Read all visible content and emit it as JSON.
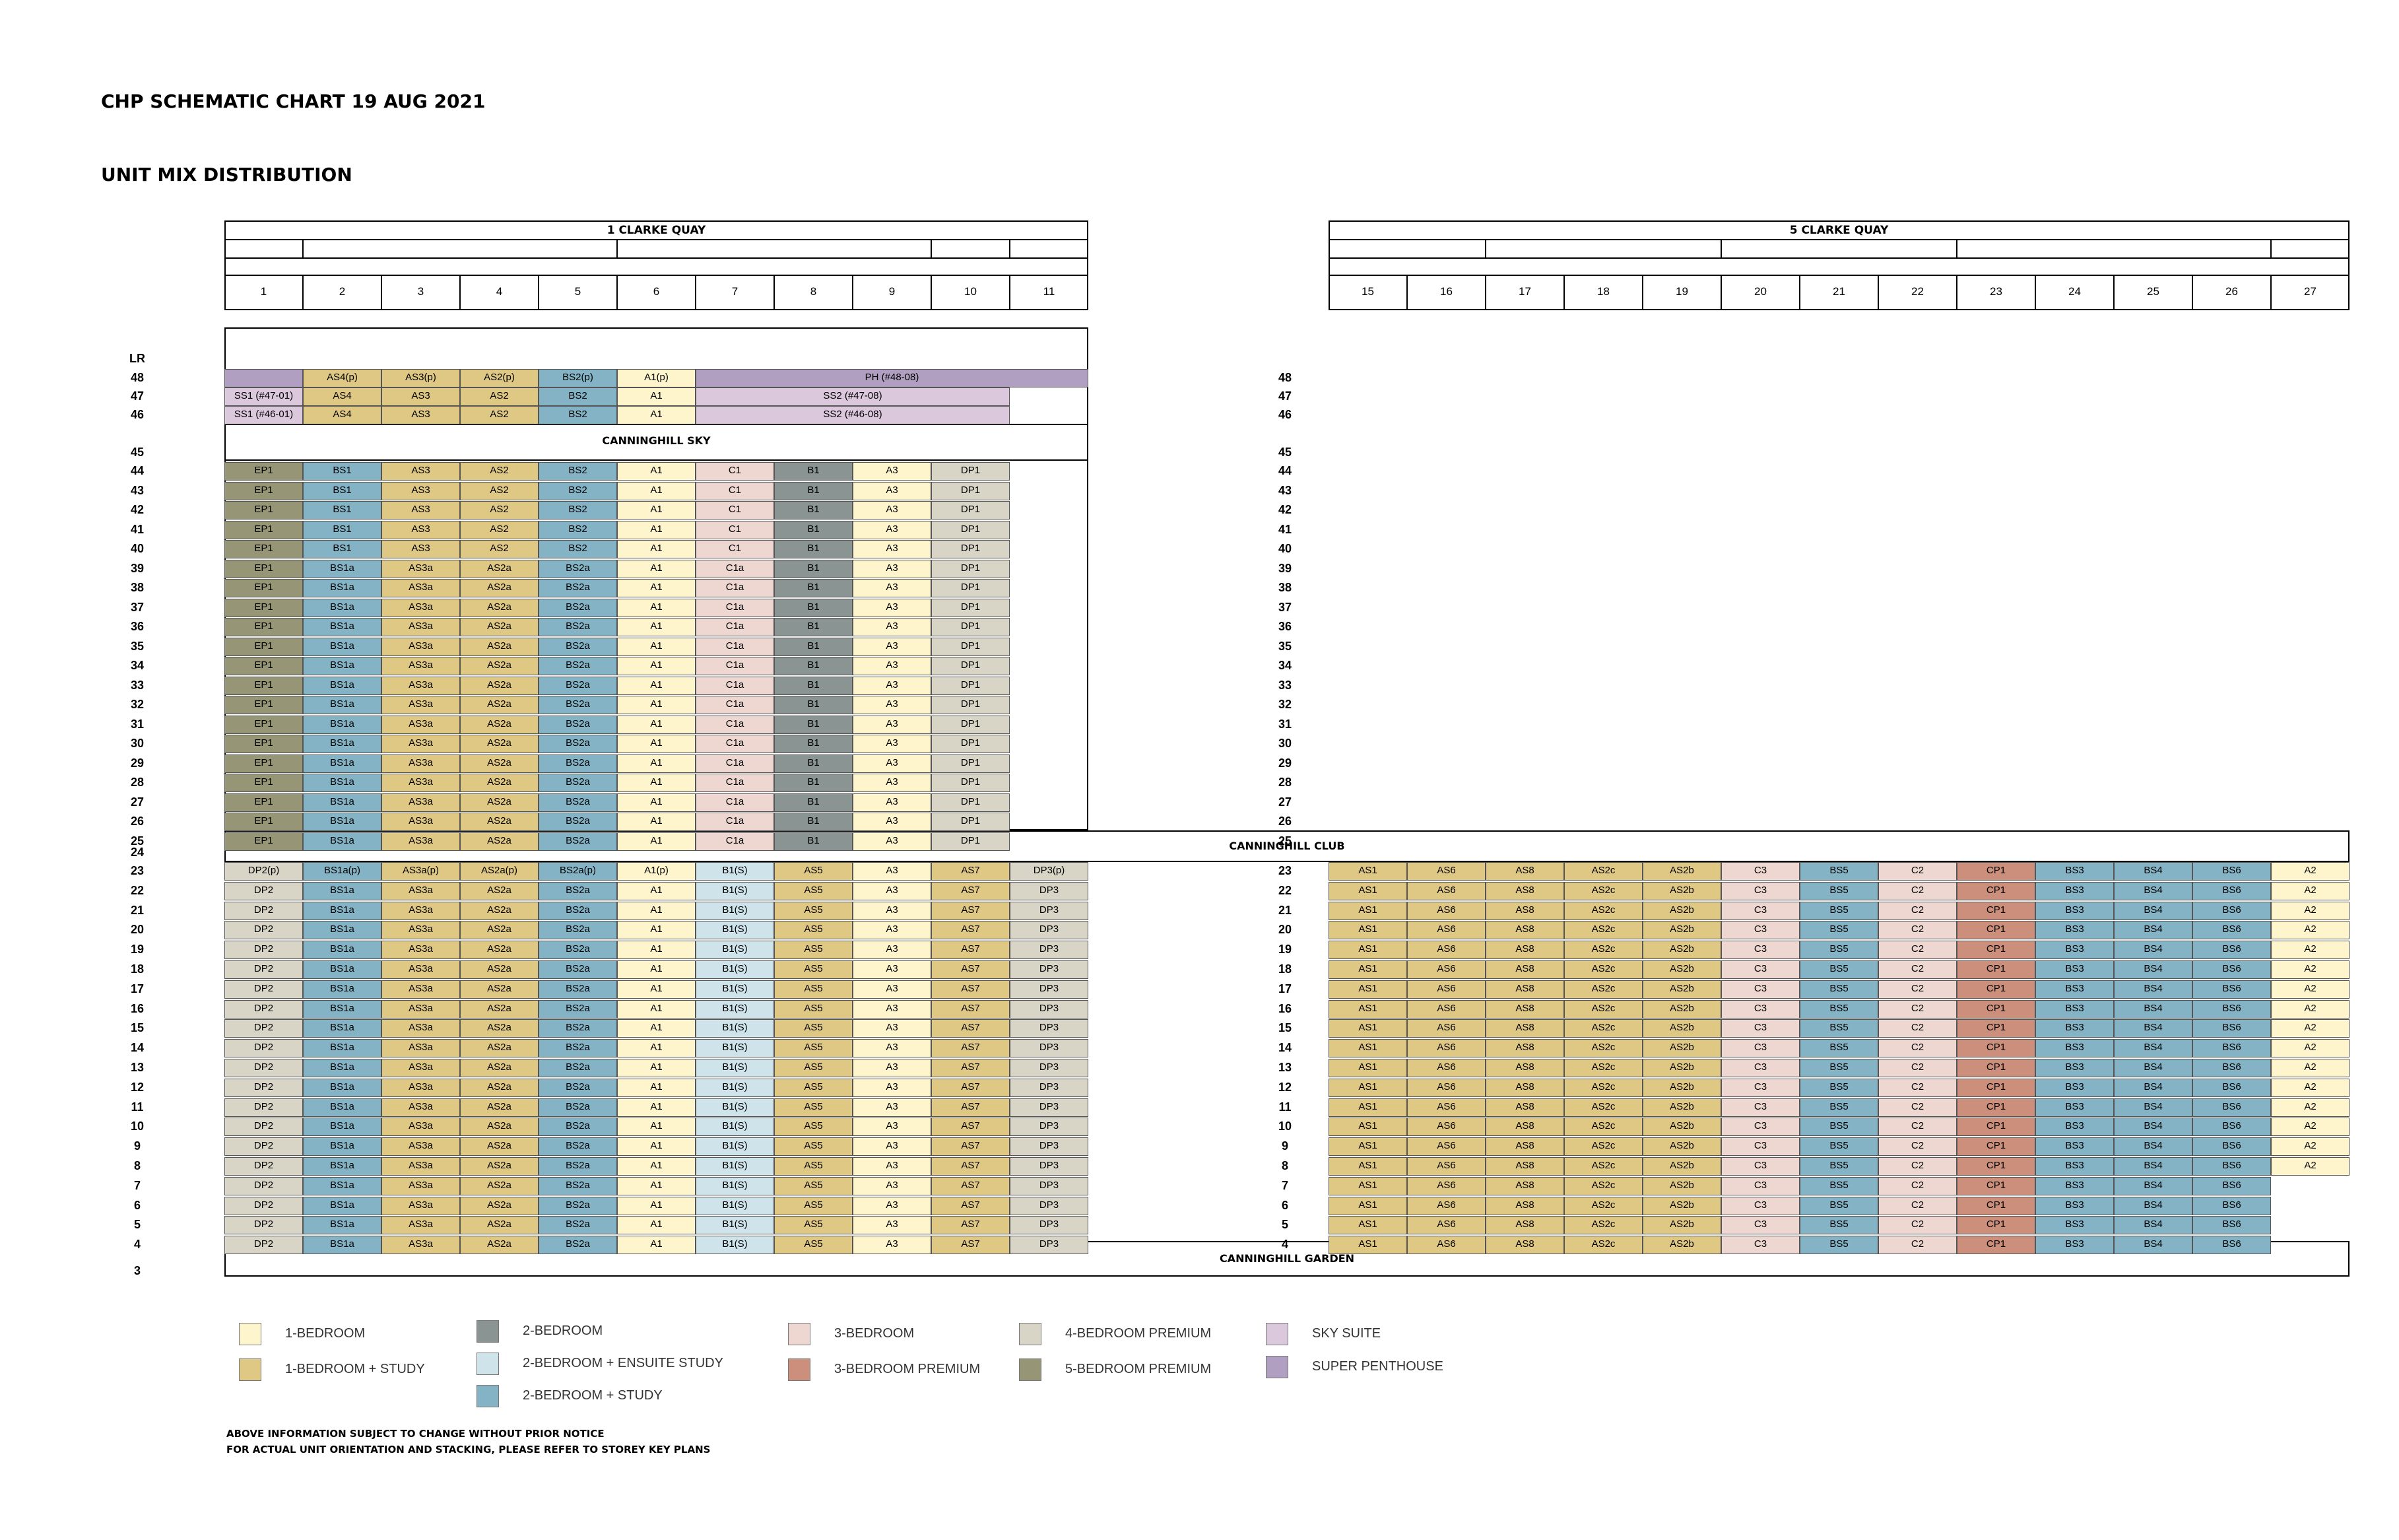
{
  "title": "CHP SCHEMATIC CHART 19 AUG 2021",
  "subtitle": "UNIT MIX DISTRIBUTION",
  "colors": {
    "1BR": "#FFF5CC",
    "1BRS": "#DFC784",
    "2BR": "#899493",
    "2BRE": "#CFE3EA",
    "2BRS": "#84B3C5",
    "3BR": "#EDD7D0",
    "3BRP": "#CC8F7B",
    "4BRP": "#D8D5C6",
    "5BRP": "#969676",
    "SS": "#DCC8DC",
    "SP": "#B09FC0"
  },
  "buildings": [
    {
      "name": "1 CLARKE QUAY",
      "columns": [
        "1",
        "2",
        "3",
        "4",
        "5",
        "6",
        "7",
        "8",
        "9",
        "10",
        "11"
      ]
    },
    {
      "name": "5 CLARKE QUAY",
      "columns": [
        "15",
        "16",
        "17",
        "18",
        "19",
        "20",
        "21",
        "22",
        "23",
        "24",
        "25",
        "26",
        "27"
      ]
    }
  ],
  "floor_labels": {
    "left": [
      "LR",
      "48",
      "47",
      "46",
      "45",
      "44",
      "43",
      "42",
      "41",
      "40",
      "39",
      "38",
      "37",
      "36",
      "35",
      "34",
      "33",
      "32",
      "31",
      "30",
      "29",
      "28",
      "27",
      "26",
      "25",
      "24",
      "23",
      "22",
      "21",
      "20",
      "19",
      "18",
      "17",
      "16",
      "15",
      "14",
      "13",
      "12",
      "11",
      "10",
      "9",
      "8",
      "7",
      "6",
      "5",
      "4",
      "3"
    ],
    "right": [
      "48",
      "47",
      "46",
      "45",
      "44",
      "43",
      "42",
      "41",
      "40",
      "39",
      "38",
      "37",
      "36",
      "35",
      "34",
      "33",
      "32",
      "31",
      "30",
      "29",
      "28",
      "27",
      "26",
      "25",
      "23",
      "22",
      "21",
      "20",
      "19",
      "18",
      "17",
      "16",
      "15",
      "14",
      "13",
      "12",
      "11",
      "10",
      "9",
      "8",
      "7",
      "6",
      "5",
      "4"
    ]
  },
  "sections": {
    "sky": "CANNINGHILL SKY",
    "club": "CANNINGHILL CLUB",
    "garden": "CANNINGHILL GARDEN"
  },
  "top_rows": [
    {
      "floor": "48",
      "cells": [
        {
          "label": "",
          "type": "SP",
          "span": 1
        },
        {
          "label": "AS4(p)",
          "type": "1BRS",
          "span": 1
        },
        {
          "label": "AS3(p)",
          "type": "1BRS",
          "span": 1
        },
        {
          "label": "AS2(p)",
          "type": "1BRS",
          "span": 1
        },
        {
          "label": "BS2(p)",
          "type": "2BRS",
          "span": 1
        },
        {
          "label": "A1(p)",
          "type": "1BR",
          "span": 1
        },
        {
          "label": "PH (#48-08)",
          "type": "SP",
          "span": 5
        }
      ]
    },
    {
      "floor": "47",
      "cells": [
        {
          "label": "SS1 (#47-01)",
          "type": "SS",
          "span": 1
        },
        {
          "label": "AS4",
          "type": "1BRS",
          "span": 1
        },
        {
          "label": "AS3",
          "type": "1BRS",
          "span": 1
        },
        {
          "label": "AS2",
          "type": "1BRS",
          "span": 1
        },
        {
          "label": "BS2",
          "type": "2BRS",
          "span": 1
        },
        {
          "label": "A1",
          "type": "1BR",
          "span": 1
        },
        {
          "label": "SS2 (#47-08)",
          "type": "SS",
          "span": 4
        }
      ]
    },
    {
      "floor": "46",
      "cells": [
        {
          "label": "SS1 (#46-01)",
          "type": "SS",
          "span": 1
        },
        {
          "label": "AS4",
          "type": "1BRS",
          "span": 1
        },
        {
          "label": "AS3",
          "type": "1BRS",
          "span": 1
        },
        {
          "label": "AS2",
          "type": "1BRS",
          "span": 1
        },
        {
          "label": "BS2",
          "type": "2BRS",
          "span": 1
        },
        {
          "label": "A1",
          "type": "1BR",
          "span": 1
        },
        {
          "label": "SS2 (#46-08)",
          "type": "SS",
          "span": 4
        }
      ]
    }
  ],
  "upper_rows": [
    {
      "floor": "44",
      "units": [
        "EP1",
        "BS1",
        "AS3",
        "AS2",
        "BS2",
        "A1",
        "C1",
        "B1",
        "A3",
        "DP1"
      ]
    },
    {
      "floor": "43",
      "units": [
        "EP1",
        "BS1",
        "AS3",
        "AS2",
        "BS2",
        "A1",
        "C1",
        "B1",
        "A3",
        "DP1"
      ]
    },
    {
      "floor": "42",
      "units": [
        "EP1",
        "BS1",
        "AS3",
        "AS2",
        "BS2",
        "A1",
        "C1",
        "B1",
        "A3",
        "DP1"
      ]
    },
    {
      "floor": "41",
      "units": [
        "EP1",
        "BS1",
        "AS3",
        "AS2",
        "BS2",
        "A1",
        "C1",
        "B1",
        "A3",
        "DP1"
      ]
    },
    {
      "floor": "40",
      "units": [
        "EP1",
        "BS1",
        "AS3",
        "AS2",
        "BS2",
        "A1",
        "C1",
        "B1",
        "A3",
        "DP1"
      ]
    },
    {
      "floor": "39",
      "units": [
        "EP1",
        "BS1a",
        "AS3a",
        "AS2a",
        "BS2a",
        "A1",
        "C1a",
        "B1",
        "A3",
        "DP1"
      ]
    },
    {
      "floor": "38",
      "units": [
        "EP1",
        "BS1a",
        "AS3a",
        "AS2a",
        "BS2a",
        "A1",
        "C1a",
        "B1",
        "A3",
        "DP1"
      ]
    },
    {
      "floor": "37",
      "units": [
        "EP1",
        "BS1a",
        "AS3a",
        "AS2a",
        "BS2a",
        "A1",
        "C1a",
        "B1",
        "A3",
        "DP1"
      ]
    },
    {
      "floor": "36",
      "units": [
        "EP1",
        "BS1a",
        "AS3a",
        "AS2a",
        "BS2a",
        "A1",
        "C1a",
        "B1",
        "A3",
        "DP1"
      ]
    },
    {
      "floor": "35",
      "units": [
        "EP1",
        "BS1a",
        "AS3a",
        "AS2a",
        "BS2a",
        "A1",
        "C1a",
        "B1",
        "A3",
        "DP1"
      ]
    },
    {
      "floor": "34",
      "units": [
        "EP1",
        "BS1a",
        "AS3a",
        "AS2a",
        "BS2a",
        "A1",
        "C1a",
        "B1",
        "A3",
        "DP1"
      ]
    },
    {
      "floor": "33",
      "units": [
        "EP1",
        "BS1a",
        "AS3a",
        "AS2a",
        "BS2a",
        "A1",
        "C1a",
        "B1",
        "A3",
        "DP1"
      ]
    },
    {
      "floor": "32",
      "units": [
        "EP1",
        "BS1a",
        "AS3a",
        "AS2a",
        "BS2a",
        "A1",
        "C1a",
        "B1",
        "A3",
        "DP1"
      ]
    },
    {
      "floor": "31",
      "units": [
        "EP1",
        "BS1a",
        "AS3a",
        "AS2a",
        "BS2a",
        "A1",
        "C1a",
        "B1",
        "A3",
        "DP1"
      ]
    },
    {
      "floor": "30",
      "units": [
        "EP1",
        "BS1a",
        "AS3a",
        "AS2a",
        "BS2a",
        "A1",
        "C1a",
        "B1",
        "A3",
        "DP1"
      ]
    },
    {
      "floor": "29",
      "units": [
        "EP1",
        "BS1a",
        "AS3a",
        "AS2a",
        "BS2a",
        "A1",
        "C1a",
        "B1",
        "A3",
        "DP1"
      ]
    },
    {
      "floor": "28",
      "units": [
        "EP1",
        "BS1a",
        "AS3a",
        "AS2a",
        "BS2a",
        "A1",
        "C1a",
        "B1",
        "A3",
        "DP1"
      ]
    },
    {
      "floor": "27",
      "units": [
        "EP1",
        "BS1a",
        "AS3a",
        "AS2a",
        "BS2a",
        "A1",
        "C1a",
        "B1",
        "A3",
        "DP1"
      ]
    },
    {
      "floor": "26",
      "units": [
        "EP1",
        "BS1a",
        "AS3a",
        "AS2a",
        "BS2a",
        "A1",
        "C1a",
        "B1",
        "A3",
        "DP1"
      ]
    },
    {
      "floor": "25",
      "units": [
        "EP1",
        "BS1a",
        "AS3a",
        "AS2a",
        "BS2a",
        "A1",
        "C1a",
        "B1",
        "A3",
        "DP1"
      ]
    }
  ],
  "upper_types": [
    "5BRP",
    "2BRS",
    "1BRS",
    "1BRS",
    "2BRS",
    "1BR",
    "3BR",
    "2BR",
    "1BR",
    "4BRP"
  ],
  "lower_rows_1cq": [
    {
      "floor": "23",
      "units": [
        "DP2(p)",
        "BS1a(p)",
        "AS3a(p)",
        "AS2a(p)",
        "BS2a(p)",
        "A1(p)",
        "B1(S)",
        "AS5",
        "A3",
        "AS7",
        "DP3(p)"
      ]
    },
    {
      "floor": "22",
      "units": [
        "DP2",
        "BS1a",
        "AS3a",
        "AS2a",
        "BS2a",
        "A1",
        "B1(S)",
        "AS5",
        "A3",
        "AS7",
        "DP3"
      ]
    },
    {
      "floor": "21",
      "units": [
        "DP2",
        "BS1a",
        "AS3a",
        "AS2a",
        "BS2a",
        "A1",
        "B1(S)",
        "AS5",
        "A3",
        "AS7",
        "DP3"
      ]
    },
    {
      "floor": "20",
      "units": [
        "DP2",
        "BS1a",
        "AS3a",
        "AS2a",
        "BS2a",
        "A1",
        "B1(S)",
        "AS5",
        "A3",
        "AS7",
        "DP3"
      ]
    },
    {
      "floor": "19",
      "units": [
        "DP2",
        "BS1a",
        "AS3a",
        "AS2a",
        "BS2a",
        "A1",
        "B1(S)",
        "AS5",
        "A3",
        "AS7",
        "DP3"
      ]
    },
    {
      "floor": "18",
      "units": [
        "DP2",
        "BS1a",
        "AS3a",
        "AS2a",
        "BS2a",
        "A1",
        "B1(S)",
        "AS5",
        "A3",
        "AS7",
        "DP3"
      ]
    },
    {
      "floor": "17",
      "units": [
        "DP2",
        "BS1a",
        "AS3a",
        "AS2a",
        "BS2a",
        "A1",
        "B1(S)",
        "AS5",
        "A3",
        "AS7",
        "DP3"
      ]
    },
    {
      "floor": "16",
      "units": [
        "DP2",
        "BS1a",
        "AS3a",
        "AS2a",
        "BS2a",
        "A1",
        "B1(S)",
        "AS5",
        "A3",
        "AS7",
        "DP3"
      ]
    },
    {
      "floor": "15",
      "units": [
        "DP2",
        "BS1a",
        "AS3a",
        "AS2a",
        "BS2a",
        "A1",
        "B1(S)",
        "AS5",
        "A3",
        "AS7",
        "DP3"
      ]
    },
    {
      "floor": "14",
      "units": [
        "DP2",
        "BS1a",
        "AS3a",
        "AS2a",
        "BS2a",
        "A1",
        "B1(S)",
        "AS5",
        "A3",
        "AS7",
        "DP3"
      ]
    },
    {
      "floor": "13",
      "units": [
        "DP2",
        "BS1a",
        "AS3a",
        "AS2a",
        "BS2a",
        "A1",
        "B1(S)",
        "AS5",
        "A3",
        "AS7",
        "DP3"
      ]
    },
    {
      "floor": "12",
      "units": [
        "DP2",
        "BS1a",
        "AS3a",
        "AS2a",
        "BS2a",
        "A1",
        "B1(S)",
        "AS5",
        "A3",
        "AS7",
        "DP3"
      ]
    },
    {
      "floor": "11",
      "units": [
        "DP2",
        "BS1a",
        "AS3a",
        "AS2a",
        "BS2a",
        "A1",
        "B1(S)",
        "AS5",
        "A3",
        "AS7",
        "DP3"
      ]
    },
    {
      "floor": "10",
      "units": [
        "DP2",
        "BS1a",
        "AS3a",
        "AS2a",
        "BS2a",
        "A1",
        "B1(S)",
        "AS5",
        "A3",
        "AS7",
        "DP3"
      ]
    },
    {
      "floor": "9",
      "units": [
        "DP2",
        "BS1a",
        "AS3a",
        "AS2a",
        "BS2a",
        "A1",
        "B1(S)",
        "AS5",
        "A3",
        "AS7",
        "DP3"
      ]
    },
    {
      "floor": "8",
      "units": [
        "DP2",
        "BS1a",
        "AS3a",
        "AS2a",
        "BS2a",
        "A1",
        "B1(S)",
        "AS5",
        "A3",
        "AS7",
        "DP3"
      ]
    },
    {
      "floor": "7",
      "units": [
        "DP2",
        "BS1a",
        "AS3a",
        "AS2a",
        "BS2a",
        "A1",
        "B1(S)",
        "AS5",
        "A3",
        "AS7",
        "DP3"
      ]
    },
    {
      "floor": "6",
      "units": [
        "DP2",
        "BS1a",
        "AS3a",
        "AS2a",
        "BS2a",
        "A1",
        "B1(S)",
        "AS5",
        "A3",
        "AS7",
        "DP3"
      ]
    },
    {
      "floor": "5",
      "units": [
        "DP2",
        "BS1a",
        "AS3a",
        "AS2a",
        "BS2a",
        "A1",
        "B1(S)",
        "AS5",
        "A3",
        "AS7",
        "DP3"
      ]
    },
    {
      "floor": "4",
      "units": [
        "DP2",
        "BS1a",
        "AS3a",
        "AS2a",
        "BS2a",
        "A1",
        "B1(S)",
        "AS5",
        "A3",
        "AS7",
        "DP3"
      ]
    }
  ],
  "lower_types_1cq": [
    "4BRP",
    "2BRS",
    "1BRS",
    "1BRS",
    "2BRS",
    "1BR",
    "2BRE",
    "1BRS",
    "1BR",
    "1BRS",
    "4BRP"
  ],
  "lower_rows_5cq": [
    {
      "floor": "23",
      "units": [
        "AS1",
        "AS6",
        "AS8",
        "AS2c",
        "AS2b",
        "C3",
        "BS5",
        "C2",
        "CP1",
        "BS3",
        "BS4",
        "BS6",
        "A2"
      ]
    },
    {
      "floor": "22",
      "units": [
        "AS1",
        "AS6",
        "AS8",
        "AS2c",
        "AS2b",
        "C3",
        "BS5",
        "C2",
        "CP1",
        "BS3",
        "BS4",
        "BS6",
        "A2"
      ]
    },
    {
      "floor": "21",
      "units": [
        "AS1",
        "AS6",
        "AS8",
        "AS2c",
        "AS2b",
        "C3",
        "BS5",
        "C2",
        "CP1",
        "BS3",
        "BS4",
        "BS6",
        "A2"
      ]
    },
    {
      "floor": "20",
      "units": [
        "AS1",
        "AS6",
        "AS8",
        "AS2c",
        "AS2b",
        "C3",
        "BS5",
        "C2",
        "CP1",
        "BS3",
        "BS4",
        "BS6",
        "A2"
      ]
    },
    {
      "floor": "19",
      "units": [
        "AS1",
        "AS6",
        "AS8",
        "AS2c",
        "AS2b",
        "C3",
        "BS5",
        "C2",
        "CP1",
        "BS3",
        "BS4",
        "BS6",
        "A2"
      ]
    },
    {
      "floor": "18",
      "units": [
        "AS1",
        "AS6",
        "AS8",
        "AS2c",
        "AS2b",
        "C3",
        "BS5",
        "C2",
        "CP1",
        "BS3",
        "BS4",
        "BS6",
        "A2"
      ]
    },
    {
      "floor": "17",
      "units": [
        "AS1",
        "AS6",
        "AS8",
        "AS2c",
        "AS2b",
        "C3",
        "BS5",
        "C2",
        "CP1",
        "BS3",
        "BS4",
        "BS6",
        "A2"
      ]
    },
    {
      "floor": "16",
      "units": [
        "AS1",
        "AS6",
        "AS8",
        "AS2c",
        "AS2b",
        "C3",
        "BS5",
        "C2",
        "CP1",
        "BS3",
        "BS4",
        "BS6",
        "A2"
      ]
    },
    {
      "floor": "15",
      "units": [
        "AS1",
        "AS6",
        "AS8",
        "AS2c",
        "AS2b",
        "C3",
        "BS5",
        "C2",
        "CP1",
        "BS3",
        "BS4",
        "BS6",
        "A2"
      ]
    },
    {
      "floor": "14",
      "units": [
        "AS1",
        "AS6",
        "AS8",
        "AS2c",
        "AS2b",
        "C3",
        "BS5",
        "C2",
        "CP1",
        "BS3",
        "BS4",
        "BS6",
        "A2"
      ]
    },
    {
      "floor": "13",
      "units": [
        "AS1",
        "AS6",
        "AS8",
        "AS2c",
        "AS2b",
        "C3",
        "BS5",
        "C2",
        "CP1",
        "BS3",
        "BS4",
        "BS6",
        "A2"
      ]
    },
    {
      "floor": "12",
      "units": [
        "AS1",
        "AS6",
        "AS8",
        "AS2c",
        "AS2b",
        "C3",
        "BS5",
        "C2",
        "CP1",
        "BS3",
        "BS4",
        "BS6",
        "A2"
      ]
    },
    {
      "floor": "11",
      "units": [
        "AS1",
        "AS6",
        "AS8",
        "AS2c",
        "AS2b",
        "C3",
        "BS5",
        "C2",
        "CP1",
        "BS3",
        "BS4",
        "BS6",
        "A2"
      ]
    },
    {
      "floor": "10",
      "units": [
        "AS1",
        "AS6",
        "AS8",
        "AS2c",
        "AS2b",
        "C3",
        "BS5",
        "C2",
        "CP1",
        "BS3",
        "BS4",
        "BS6",
        "A2"
      ]
    },
    {
      "floor": "9",
      "units": [
        "AS1",
        "AS6",
        "AS8",
        "AS2c",
        "AS2b",
        "C3",
        "BS5",
        "C2",
        "CP1",
        "BS3",
        "BS4",
        "BS6",
        "A2"
      ]
    },
    {
      "floor": "8",
      "units": [
        "AS1",
        "AS6",
        "AS8",
        "AS2c",
        "AS2b",
        "C3",
        "BS5",
        "C2",
        "CP1",
        "BS3",
        "BS4",
        "BS6",
        "A2"
      ]
    },
    {
      "floor": "7",
      "units": [
        "AS1",
        "AS6",
        "AS8",
        "AS2c",
        "AS2b",
        "C3",
        "BS5",
        "C2",
        "CP1",
        "BS3",
        "BS4",
        "BS6"
      ]
    },
    {
      "floor": "6",
      "units": [
        "AS1",
        "AS6",
        "AS8",
        "AS2c",
        "AS2b",
        "C3",
        "BS5",
        "C2",
        "CP1",
        "BS3",
        "BS4",
        "BS6"
      ]
    },
    {
      "floor": "5",
      "units": [
        "AS1",
        "AS6",
        "AS8",
        "AS2c",
        "AS2b",
        "C3",
        "BS5",
        "C2",
        "CP1",
        "BS3",
        "BS4",
        "BS6"
      ]
    },
    {
      "floor": "4",
      "units": [
        "AS1",
        "AS6",
        "AS8",
        "AS2c",
        "AS2b",
        "C3",
        "BS5",
        "C2",
        "CP1",
        "BS3",
        "BS4",
        "BS6"
      ]
    }
  ],
  "lower_types_5cq": [
    "1BRS",
    "1BRS",
    "1BRS",
    "1BRS",
    "1BRS",
    "3BR",
    "2BRS",
    "3BR",
    "3BRP",
    "2BRS",
    "2BRS",
    "2BRS",
    "1BR"
  ],
  "legend": [
    {
      "label": "1-BEDROOM",
      "type": "1BR"
    },
    {
      "label": "1-BEDROOM + STUDY",
      "type": "1BRS"
    },
    {
      "label": "2-BEDROOM",
      "type": "2BR"
    },
    {
      "label": "2-BEDROOM + ENSUITE STUDY",
      "type": "2BRE"
    },
    {
      "label": "2-BEDROOM + STUDY",
      "type": "2BRS"
    },
    {
      "label": "3-BEDROOM",
      "type": "3BR"
    },
    {
      "label": "3-BEDROOM PREMIUM",
      "type": "3BRP"
    },
    {
      "label": "4-BEDROOM PREMIUM",
      "type": "4BRP"
    },
    {
      "label": "5-BEDROOM PREMIUM",
      "type": "5BRP"
    },
    {
      "label": "SKY SUITE",
      "type": "SS"
    },
    {
      "label": "SUPER PENTHOUSE",
      "type": "SP"
    }
  ],
  "notes": [
    "ABOVE INFORMATION SUBJECT TO CHANGE WITHOUT PRIOR NOTICE",
    "FOR ACTUAL UNIT ORIENTATION AND STACKING, PLEASE REFER TO STOREY KEY PLANS"
  ]
}
